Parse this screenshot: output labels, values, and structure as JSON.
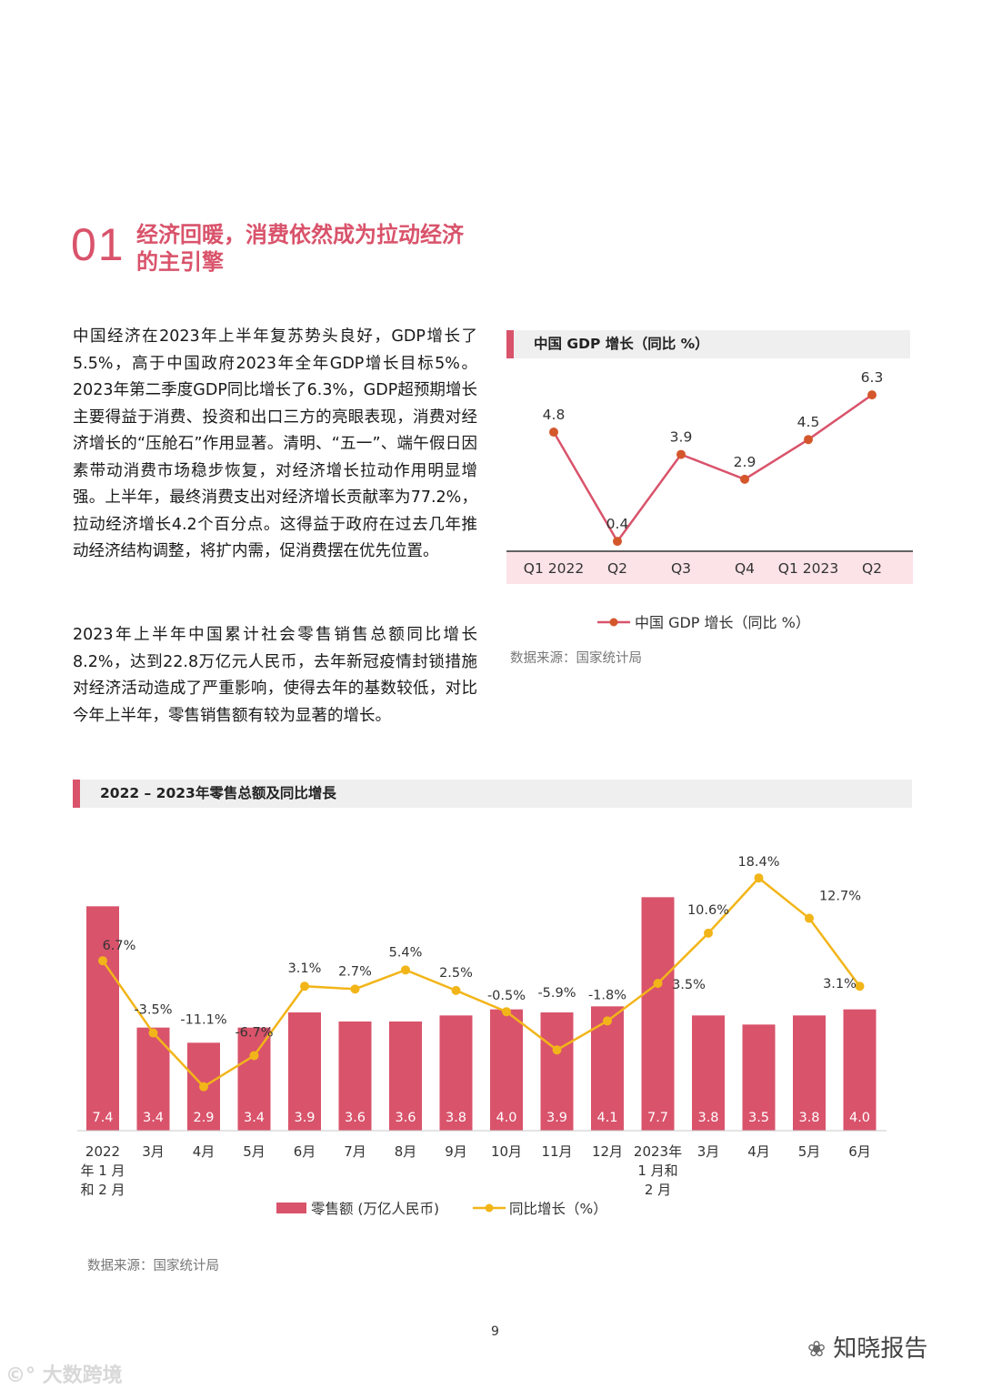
{
  "section": {
    "number": "01",
    "title": "经济回暖，消费依然成为拉动经济的主引擎"
  },
  "paragraphs": [
    "中国经济在2023年上半年复苏势头良好，GDP增长了5.5%，高于中国政府2023年全年GDP增长目标5%。2023年第二季度GDP同比增长了6.3%，GDP超预期增长主要得益于消费、投资和出口三方的亮眼表现，消费对经济增长的“压舱石”作用显著。清明、“五一”、端午假日因素带动消费市场稳步恢复，对经济增长拉动作用明显增强。上半年，最终消费支出对经济增长贡献率为77.2%，拉动经济增长4.2个百分点。这得益于政府在过去几年推动经济结构调整，将扩内需，促消费摆在优先位置。",
    "2023年上半年中国累计社会零售销售总额同比增长8.2%，达到22.8万亿元人民币，去年新冠疫情封锁措施对经济活动造成了严重影响，使得去年的基数较低，对比今年上半年，零售销售额有较为显著的增长。"
  ],
  "chart_data": [
    {
      "type": "line",
      "title": "中国 GDP 增长（同比 %）",
      "categories": [
        "Q1 2022",
        "Q2",
        "Q3",
        "Q4",
        "Q1 2023",
        "Q2"
      ],
      "series": [
        {
          "name": "中国 GDP 增长（同比 %）",
          "values": [
            4.8,
            0.4,
            3.9,
            2.9,
            4.5,
            6.3
          ]
        }
      ],
      "data_labels": [
        "4.8",
        "0.4",
        "3.9",
        "2.9",
        "4.5",
        "6.3"
      ],
      "ylim": [
        0,
        7
      ],
      "source": "数据来源：国家统计局",
      "colors": {
        "line": "#d9536b",
        "marker": "#d4572c",
        "axis_band": "#fbe3e7"
      }
    },
    {
      "type": "bar",
      "title": "2022 – 2023年零售总额及同比增長",
      "categories": [
        [
          "2022",
          "年 1 月",
          "和 2 月"
        ],
        [
          "3月"
        ],
        [
          "4月"
        ],
        [
          "5月"
        ],
        [
          "6月"
        ],
        [
          "7月"
        ],
        [
          "8月"
        ],
        [
          "9月"
        ],
        [
          "10月"
        ],
        [
          "11月"
        ],
        [
          "12月"
        ],
        [
          "2023年",
          "1 月和",
          "2 月"
        ],
        [
          "3月"
        ],
        [
          "4月"
        ],
        [
          "5月"
        ],
        [
          "6月"
        ]
      ],
      "series": [
        {
          "name": "零售额 (万亿人民币)",
          "type": "bar",
          "values": [
            7.4,
            3.4,
            2.9,
            3.4,
            3.9,
            3.6,
            3.6,
            3.8,
            4.0,
            3.9,
            4.1,
            7.7,
            3.8,
            3.5,
            3.8,
            4.0
          ],
          "labels": [
            "7.4",
            "3.4",
            "2.9",
            "3.4",
            "3.9",
            "3.6",
            "3.6",
            "3.8",
            "4.0",
            "3.9",
            "4.1",
            "7.7",
            "3.8",
            "3.5",
            "3.8",
            "4.0"
          ]
        },
        {
          "name": "同比增长（%）",
          "type": "line",
          "values": [
            6.7,
            -3.5,
            -11.1,
            -6.7,
            3.1,
            2.7,
            5.4,
            2.5,
            -0.5,
            -5.9,
            -1.8,
            3.5,
            10.6,
            18.4,
            12.7,
            3.1
          ],
          "labels": [
            "6.7%",
            "-3.5%",
            "-11.1%",
            "-6.7%",
            "3.1%",
            "2.7%",
            "5.4%",
            "2.5%",
            "-0.5%",
            "-5.9%",
            "-1.8%",
            "3.5%",
            "10.6%",
            "18.4%",
            "12.7%",
            "3.1%"
          ]
        }
      ],
      "bar_ylim": [
        0,
        8.4
      ],
      "line_ylim": [
        -15,
        21
      ],
      "source": "数据来源：国家统计局",
      "colors": {
        "bar": "#d9536b",
        "line": "#f2b519"
      }
    }
  ],
  "page_number": "9",
  "watermark_left": "大数跨境",
  "watermark_right": "知晓报告"
}
